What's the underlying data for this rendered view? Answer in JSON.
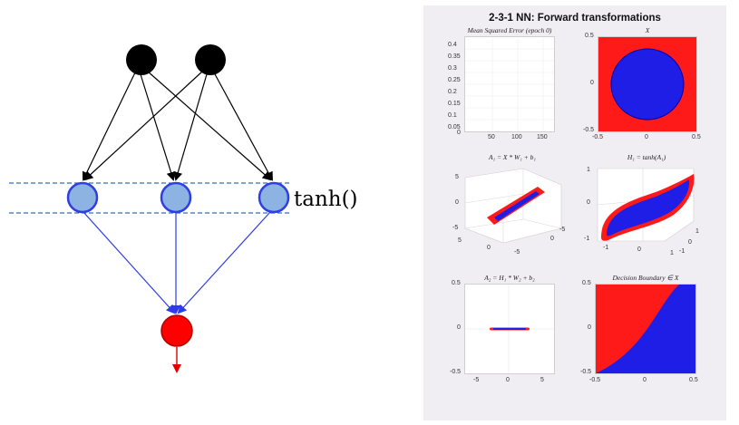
{
  "network": {
    "activation_label": "tanh()",
    "colors": {
      "input": "#000000",
      "hidden_fill": "#8db3e2",
      "hidden_stroke": "#2f3fe0",
      "output_fill": "#ff0000",
      "output_stroke": "#c00000",
      "edges_in": "#000000",
      "edges_out": "#2d3be8",
      "dashes": "#3a6fb0"
    }
  },
  "figure": {
    "title": "2-3-1 NN: Forward transformations",
    "panels": {
      "mse": {
        "title": "Mean Squared Error (epoch 0)",
        "yticks": [
          "0.4",
          "0.35",
          "0.3",
          "0.25",
          "0.2",
          "0.15",
          "0.1",
          "0.05",
          "0"
        ],
        "xticks": [
          "50",
          "100",
          "150"
        ]
      },
      "x": {
        "title": "X",
        "yticks": [
          "0.5",
          "0",
          "-0.5"
        ],
        "xticks": [
          "-0.5",
          "0",
          "0.5"
        ]
      },
      "a1": {
        "title": "A₁ = X * W₁ + b₁",
        "zticks": [
          "5",
          "0",
          "-5"
        ],
        "xticks": [
          "5",
          "0",
          "-5"
        ],
        "yticks": [
          "0",
          "-5"
        ]
      },
      "h1": {
        "title": "H₁ = tanh(A₁)",
        "zticks": [
          "1",
          "0",
          "-1"
        ],
        "xticks": [
          "-1",
          "0",
          "1"
        ],
        "yticks": [
          "1",
          "0",
          "-1"
        ]
      },
      "a2": {
        "title": "A₂ = H₁ * W₂ + b₂",
        "yticks": [
          "0.5",
          "0",
          "-0.5"
        ],
        "xticks": [
          "-5",
          "0",
          "5"
        ]
      },
      "db": {
        "title": "Decision Boundary ∈ X",
        "yticks": [
          "0.5",
          "0",
          "-0.5"
        ],
        "xticks": [
          "-0.5",
          "0",
          "0.5"
        ]
      }
    },
    "colors": {
      "class_outer": "#ff0000",
      "class_inner": "#0000ff"
    }
  }
}
